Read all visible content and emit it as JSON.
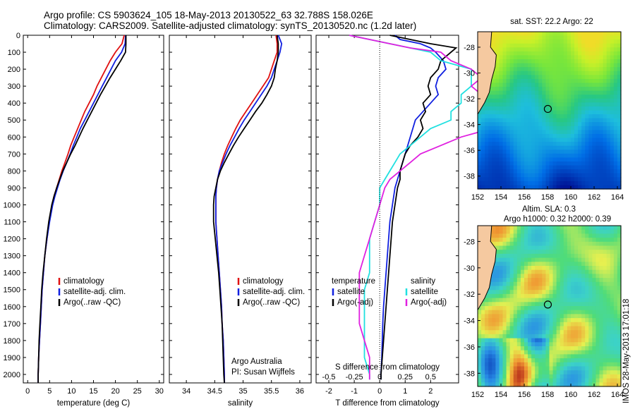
{
  "header": {
    "line1": "Argo profile: CS 5903624_105 18-May-2013 20130522_63 32.788S 158.026E",
    "line2": "Climatology: CARS2009. Satellite-adjusted climatology: synTS_20130520.nc (1.2d later)"
  },
  "side_label": "IMOS 28-May-2013 17:01:18",
  "colors": {
    "climatology": "#e01010",
    "satellite": "#1020e0",
    "argo": "#000000",
    "sat_salinity": "#20e0e0",
    "argo_salinity": "#e020e0",
    "land": "#f5c9a0"
  },
  "chart_data": [
    {
      "type": "line",
      "xlabel": "temperature (deg C)",
      "ylabel": "",
      "ylim": [
        2050,
        0
      ],
      "xlim": [
        -1,
        31
      ],
      "xticks": [
        0,
        5,
        10,
        15,
        20,
        25,
        30
      ],
      "yticks": [
        0,
        100,
        200,
        300,
        400,
        500,
        600,
        700,
        800,
        900,
        1000,
        1100,
        1200,
        1300,
        1400,
        1500,
        1600,
        1700,
        1800,
        1900,
        2000
      ],
      "legend": [
        "climatology",
        "satellite-adj. clim.",
        "Argo(..raw -QC)"
      ],
      "depth": [
        0,
        50,
        100,
        150,
        200,
        250,
        300,
        350,
        400,
        450,
        500,
        550,
        600,
        650,
        700,
        750,
        800,
        850,
        900,
        950,
        1000,
        1100,
        1200,
        1300,
        1400,
        1500,
        1600,
        1700,
        1800,
        1900,
        2000,
        2050
      ],
      "series": [
        {
          "name": "climatology",
          "values": [
            22.0,
            21.5,
            20.0,
            18.8,
            17.8,
            16.8,
            15.8,
            15.0,
            14.0,
            13.0,
            12.2,
            11.4,
            10.6,
            9.8,
            9.2,
            8.5,
            7.8,
            7.2,
            6.6,
            6.0,
            5.6,
            4.9,
            4.4,
            3.9,
            3.6,
            3.3,
            3.1,
            2.9,
            2.7,
            2.5,
            2.4,
            2.4
          ]
        },
        {
          "name": "satellite-adj. clim.",
          "values": [
            22.3,
            22.2,
            21.4,
            20.0,
            19.0,
            18.0,
            17.0,
            16.0,
            15.0,
            14.0,
            13.0,
            12.0,
            11.2,
            10.4,
            9.7,
            8.9,
            8.1,
            7.4,
            6.8,
            6.2,
            5.7,
            5.0,
            4.4,
            3.9,
            3.6,
            3.3,
            3.1,
            2.9,
            2.7,
            2.5,
            2.4,
            2.4
          ]
        },
        {
          "name": "Argo(..raw -QC)",
          "values": [
            22.4,
            22.4,
            22.3,
            21.2,
            20.0,
            18.8,
            17.7,
            16.6,
            15.6,
            14.6,
            13.6,
            12.6,
            11.7,
            10.8,
            9.8,
            8.9,
            8.0,
            7.3,
            6.6,
            6.0,
            5.5,
            4.8,
            4.3,
            3.9,
            3.5,
            3.2,
            3.0,
            2.8,
            2.6,
            2.5,
            2.4,
            2.4
          ]
        }
      ]
    },
    {
      "type": "line",
      "xlabel": "salinity",
      "ylim": [
        2050,
        0
      ],
      "xlim": [
        33.7,
        36.2
      ],
      "xticks": [
        34,
        34.5,
        35,
        35.5,
        36
      ],
      "legend": [
        "climatology",
        "satellite-adj. clim.",
        "Argo(..raw -QC)"
      ],
      "annotation": [
        "Argo Australia",
        "PI: Susan Wijffels"
      ],
      "depth": [
        0,
        50,
        100,
        150,
        200,
        250,
        300,
        350,
        400,
        450,
        500,
        550,
        600,
        650,
        700,
        750,
        800,
        850,
        900,
        950,
        1000,
        1100,
        1200,
        1300,
        1400,
        1500,
        1600,
        1700,
        1800,
        1900,
        2000,
        2050
      ],
      "series": [
        {
          "name": "climatology",
          "values": [
            35.58,
            35.6,
            35.6,
            35.55,
            35.5,
            35.45,
            35.35,
            35.25,
            35.15,
            35.05,
            34.95,
            34.87,
            34.8,
            34.73,
            34.67,
            34.62,
            34.58,
            34.55,
            34.53,
            34.52,
            34.52,
            34.52,
            34.54,
            34.56,
            34.58,
            34.6,
            34.62,
            34.63,
            34.65,
            34.66,
            34.67,
            34.67
          ]
        },
        {
          "name": "satellite-adj. clim.",
          "values": [
            35.62,
            35.68,
            35.65,
            35.6,
            35.55,
            35.5,
            35.42,
            35.32,
            35.22,
            35.12,
            35.02,
            34.93,
            34.85,
            34.77,
            34.7,
            34.64,
            34.58,
            34.55,
            34.53,
            34.52,
            34.52,
            34.52,
            34.54,
            34.56,
            34.58,
            34.6,
            34.62,
            34.63,
            34.65,
            34.66,
            34.67,
            34.67
          ]
        },
        {
          "name": "Argo(..raw -QC)",
          "values": [
            35.6,
            35.62,
            35.62,
            35.6,
            35.57,
            35.55,
            35.5,
            35.42,
            35.33,
            35.22,
            35.12,
            35.02,
            34.92,
            34.83,
            34.75,
            34.67,
            34.6,
            34.55,
            34.52,
            34.49,
            34.48,
            34.48,
            34.51,
            34.54,
            34.57,
            34.59,
            34.61,
            34.63,
            34.64,
            34.65,
            34.66,
            34.67
          ]
        }
      ]
    },
    {
      "type": "line",
      "xlabel": "T difference from climatology",
      "xlabel2": "S difference from climatology",
      "ylim": [
        2050,
        0
      ],
      "xlim": [
        -2.5,
        3.1
      ],
      "xticks": [
        -2,
        -1,
        0,
        1,
        2
      ],
      "xtick_labels": [
        "-2",
        "-1",
        "0",
        "1",
        "2"
      ],
      "s_ticks": [
        "-0.5",
        "-0.25",
        "0",
        "0.25",
        "0.5"
      ],
      "legend_temperature_title": "temperature",
      "legend_salinity_title": "salinity",
      "legend": [
        "satellite",
        "Argo(-adj)",
        "satellite",
        "Argo(-adj)"
      ],
      "depth": [
        0,
        25,
        50,
        75,
        100,
        150,
        200,
        250,
        300,
        350,
        400,
        450,
        500,
        550,
        600,
        650,
        700,
        750,
        800,
        850,
        900,
        1000,
        1100,
        1200,
        1300,
        1400,
        1500,
        1600,
        1700,
        1800,
        1900,
        2000,
        2030
      ],
      "series": [
        {
          "name": "satellite",
          "values": [
            0.6,
            0.8,
            1.6,
            2.0,
            2.2,
            2.5,
            2.6,
            2.3,
            2.2,
            2.3,
            2.0,
            1.7,
            1.4,
            1.3,
            1.2,
            1.1,
            1.0,
            0.9,
            0.8,
            0.7,
            0.6,
            0.5,
            0.4,
            0.35,
            0.3,
            0.25,
            0.2,
            0.15,
            0.12,
            0.1,
            0.08,
            0.05,
            0.05
          ]
        },
        {
          "name": "Argo(-adj)",
          "values": [
            0.4,
            1.2,
            2.0,
            3.0,
            2.8,
            2.4,
            2.3,
            2.0,
            1.9,
            2.0,
            1.7,
            1.8,
            1.6,
            1.7,
            1.5,
            1.2,
            1.0,
            0.9,
            0.8,
            0.8,
            0.7,
            0.6,
            0.5,
            0.45,
            0.4,
            0.35,
            0.3,
            0.25,
            0.2,
            0.15,
            0.1,
            0.05,
            0.05
          ]
        },
        {
          "name": "satellite",
          "values": [
            -0.3,
            -0.1,
            0.1,
            0.3,
            0.5,
            0.6,
            0.9,
            0.9,
            0.9,
            0.8,
            0.8,
            0.7,
            0.7,
            0.5,
            0.4,
            0.3,
            0.2,
            0.15,
            0.1,
            0.05,
            0.0,
            0.0,
            -0.05,
            -0.1,
            -0.1,
            -0.1,
            -0.15,
            -0.15,
            -0.15,
            -0.15,
            -0.15,
            -0.1,
            -0.1
          ]
        },
        {
          "name": "Argo(-adj)",
          "values": [
            -0.3,
            -0.1,
            0.1,
            0.3,
            0.6,
            0.7,
            0.9,
            1.0,
            0.9,
            1.0,
            1.1,
            1.3,
            1.2,
            1.1,
            0.8,
            0.6,
            0.4,
            0.3,
            0.2,
            0.1,
            0.05,
            0.0,
            -0.05,
            -0.1,
            -0.15,
            -0.2,
            -0.2,
            -0.2,
            -0.2,
            -0.15,
            -0.1,
            -0.1,
            -0.1
          ]
        }
      ]
    },
    {
      "type": "heatmap",
      "title": "sat. SST: 22.2 Argo: 22",
      "xticks": [
        152,
        154,
        156,
        158,
        160,
        162,
        164
      ],
      "yticks": [
        -28,
        -30,
        -32,
        -34,
        -36,
        -38
      ],
      "xlim": [
        152,
        164.3
      ],
      "ylim": [
        -39,
        -26.8
      ]
    },
    {
      "type": "heatmap",
      "title": "Altim. SLA: 0.3",
      "title2": "Argo h1000: 0.32 h2000: 0.39",
      "xticks": [
        152,
        154,
        156,
        158,
        160,
        162,
        164
      ],
      "yticks": [
        -28,
        -30,
        -32,
        -34,
        -36,
        -38
      ],
      "xlim": [
        152,
        164.3
      ],
      "ylim": [
        -39,
        -26.8
      ]
    }
  ]
}
